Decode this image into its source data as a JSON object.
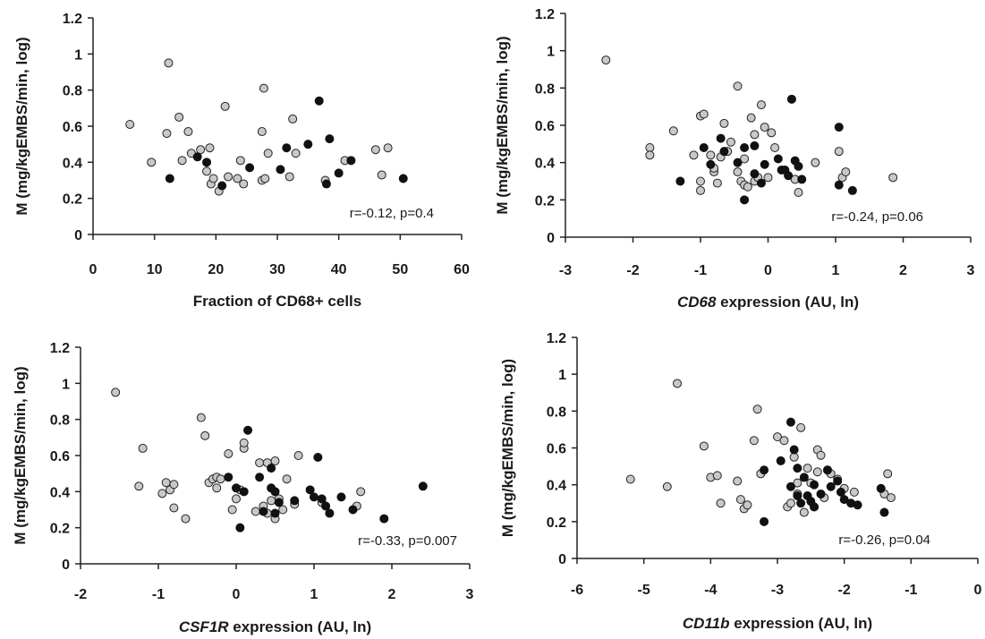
{
  "colors": {
    "open_points": "#c8c8c8",
    "filled_points": "#111111",
    "axis": "#222222"
  },
  "chart_data": [
    {
      "type": "scatter",
      "xlabel": "Fraction of CD68+ cells",
      "xlabel_italic": "",
      "xlabel_rest": "",
      "ylabel": "M (mg/kgEMBS/min, log)",
      "xlim": [
        0,
        60
      ],
      "ylim": [
        0,
        1.2
      ],
      "xticks": [
        "0",
        "10",
        "20",
        "30",
        "40",
        "50",
        "60"
      ],
      "yticks": [
        "0",
        "0.2",
        "0.4",
        "0.6",
        "0.8",
        "1",
        "1.2"
      ],
      "annotation": "r=-0.12, p=0.4",
      "series": [
        {
          "style": "open",
          "points": [
            [
              6,
              0.61
            ],
            [
              9.5,
              0.4
            ],
            [
              12,
              0.56
            ],
            [
              12.3,
              0.95
            ],
            [
              14,
              0.65
            ],
            [
              14.5,
              0.41
            ],
            [
              15.5,
              0.57
            ],
            [
              16,
              0.45
            ],
            [
              17.5,
              0.47
            ],
            [
              18.5,
              0.35
            ],
            [
              19,
              0.48
            ],
            [
              19.2,
              0.28
            ],
            [
              19.6,
              0.31
            ],
            [
              20.5,
              0.24
            ],
            [
              21.5,
              0.71
            ],
            [
              22,
              0.32
            ],
            [
              23.5,
              0.31
            ],
            [
              24,
              0.41
            ],
            [
              24.5,
              0.28
            ],
            [
              27.5,
              0.57
            ],
            [
              27.5,
              0.3
            ],
            [
              27.8,
              0.81
            ],
            [
              28,
              0.31
            ],
            [
              28.5,
              0.45
            ],
            [
              32,
              0.32
            ],
            [
              32.5,
              0.64
            ],
            [
              33,
              0.45
            ],
            [
              37.8,
              0.3
            ],
            [
              41,
              0.41
            ],
            [
              46,
              0.47
            ],
            [
              47,
              0.33
            ],
            [
              48,
              0.48
            ]
          ]
        },
        {
          "style": "filled",
          "points": [
            [
              12.5,
              0.31
            ],
            [
              17,
              0.43
            ],
            [
              18.5,
              0.4
            ],
            [
              21,
              0.27
            ],
            [
              25.5,
              0.37
            ],
            [
              30.5,
              0.36
            ],
            [
              31.5,
              0.48
            ],
            [
              35,
              0.5
            ],
            [
              36.8,
              0.74
            ],
            [
              38,
              0.28
            ],
            [
              38.5,
              0.53
            ],
            [
              40,
              0.34
            ],
            [
              42,
              0.41
            ],
            [
              50.5,
              0.31
            ]
          ]
        }
      ]
    },
    {
      "type": "scatter",
      "xlabel": "",
      "xlabel_italic": "CD68",
      "xlabel_rest": " expression (AU, ln)",
      "ylabel": "M (mg/kgEMBS/min, log)",
      "xlim": [
        -3,
        3
      ],
      "ylim": [
        0,
        1.2
      ],
      "xticks": [
        "-3",
        "-2",
        "-1",
        "0",
        "1",
        "2",
        "3"
      ],
      "yticks": [
        "0",
        "0.2",
        "0.4",
        "0.6",
        "0.8",
        "1",
        "1.2"
      ],
      "annotation": "r=-0.24, p=0.06",
      "series": [
        {
          "style": "open",
          "points": [
            [
              -2.4,
              0.95
            ],
            [
              -1.75,
              0.48
            ],
            [
              -1.75,
              0.44
            ],
            [
              -1.4,
              0.57
            ],
            [
              -1.1,
              0.44
            ],
            [
              -1,
              0.65
            ],
            [
              -1,
              0.3
            ],
            [
              -1,
              0.25
            ],
            [
              -0.95,
              0.66
            ],
            [
              -0.85,
              0.44
            ],
            [
              -0.8,
              0.35
            ],
            [
              -0.8,
              0.37
            ],
            [
              -0.75,
              0.29
            ],
            [
              -0.7,
              0.43
            ],
            [
              -0.65,
              0.61
            ],
            [
              -0.6,
              0.46
            ],
            [
              -0.55,
              0.51
            ],
            [
              -0.45,
              0.35
            ],
            [
              -0.45,
              0.81
            ],
            [
              -0.4,
              0.3
            ],
            [
              -0.35,
              0.28
            ],
            [
              -0.35,
              0.42
            ],
            [
              -0.3,
              0.27
            ],
            [
              -0.25,
              0.64
            ],
            [
              -0.2,
              0.3
            ],
            [
              -0.2,
              0.55
            ],
            [
              -0.15,
              0.32
            ],
            [
              -0.1,
              0.71
            ],
            [
              -0.05,
              0.59
            ],
            [
              0,
              0.32
            ],
            [
              0.05,
              0.56
            ],
            [
              0.1,
              0.48
            ],
            [
              0.4,
              0.31
            ],
            [
              0.45,
              0.24
            ],
            [
              0.7,
              0.4
            ],
            [
              1.05,
              0.46
            ],
            [
              1.1,
              0.32
            ],
            [
              1.15,
              0.35
            ],
            [
              1.85,
              0.32
            ]
          ]
        },
        {
          "style": "filled",
          "points": [
            [
              -1.3,
              0.3
            ],
            [
              -0.95,
              0.48
            ],
            [
              -0.85,
              0.39
            ],
            [
              -0.7,
              0.53
            ],
            [
              -0.65,
              0.46
            ],
            [
              -0.45,
              0.4
            ],
            [
              -0.35,
              0.2
            ],
            [
              -0.35,
              0.48
            ],
            [
              -0.2,
              0.49
            ],
            [
              -0.2,
              0.34
            ],
            [
              -0.1,
              0.29
            ],
            [
              -0.05,
              0.39
            ],
            [
              0.15,
              0.42
            ],
            [
              0.2,
              0.36
            ],
            [
              0.25,
              0.36
            ],
            [
              0.3,
              0.33
            ],
            [
              0.35,
              0.74
            ],
            [
              0.4,
              0.41
            ],
            [
              0.45,
              0.38
            ],
            [
              0.5,
              0.31
            ],
            [
              1.05,
              0.59
            ],
            [
              1.05,
              0.28
            ],
            [
              1.25,
              0.25
            ]
          ]
        }
      ]
    },
    {
      "type": "scatter",
      "xlabel": "",
      "xlabel_italic": "CSF1R",
      "xlabel_rest": " expression (AU, ln)",
      "ylabel": "M (mg/kgEMBS/min, log)",
      "xlim": [
        -2,
        3
      ],
      "ylim": [
        0,
        1.2
      ],
      "xticks": [
        "-2",
        "-1",
        "0",
        "1",
        "2",
        "3"
      ],
      "yticks": [
        "0",
        "0.2",
        "0.4",
        "0.6",
        "0.8",
        "1",
        "1.2"
      ],
      "annotation": "r=-0.33, p=0.007",
      "series": [
        {
          "style": "open",
          "points": [
            [
              -1.55,
              0.95
            ],
            [
              -1.25,
              0.43
            ],
            [
              -1.2,
              0.64
            ],
            [
              -0.95,
              0.39
            ],
            [
              -0.9,
              0.45
            ],
            [
              -0.85,
              0.41
            ],
            [
              -0.8,
              0.44
            ],
            [
              -0.8,
              0.31
            ],
            [
              -0.65,
              0.25
            ],
            [
              -0.35,
              0.45
            ],
            [
              -0.3,
              0.47
            ],
            [
              -0.25,
              0.42
            ],
            [
              -0.25,
              0.48
            ],
            [
              -0.2,
              0.47
            ],
            [
              -0.1,
              0.61
            ],
            [
              -0.05,
              0.3
            ],
            [
              0,
              0.36
            ],
            [
              0.05,
              0.41
            ],
            [
              0.1,
              0.64
            ],
            [
              0.1,
              0.67
            ],
            [
              0.25,
              0.29
            ],
            [
              0.3,
              0.56
            ],
            [
              0.35,
              0.32
            ],
            [
              0.4,
              0.56
            ],
            [
              0.4,
              0.28
            ],
            [
              0.45,
              0.35
            ],
            [
              0.5,
              0.57
            ],
            [
              0.5,
              0.25
            ],
            [
              0.55,
              0.36
            ],
            [
              0.6,
              0.3
            ],
            [
              0.65,
              0.47
            ],
            [
              0.75,
              0.33
            ],
            [
              0.8,
              0.6
            ],
            [
              1.1,
              0.34
            ],
            [
              1.55,
              0.32
            ],
            [
              1.6,
              0.4
            ],
            [
              -0.45,
              0.81
            ],
            [
              -0.4,
              0.71
            ]
          ]
        },
        {
          "style": "filled",
          "points": [
            [
              -0.1,
              0.48
            ],
            [
              0,
              0.42
            ],
            [
              0.05,
              0.2
            ],
            [
              0.1,
              0.4
            ],
            [
              0.15,
              0.74
            ],
            [
              0.3,
              0.48
            ],
            [
              0.35,
              0.29
            ],
            [
              0.45,
              0.53
            ],
            [
              0.45,
              0.42
            ],
            [
              0.5,
              0.4
            ],
            [
              0.55,
              0.34
            ],
            [
              0.75,
              0.35
            ],
            [
              0.95,
              0.41
            ],
            [
              1,
              0.37
            ],
            [
              1.05,
              0.59
            ],
            [
              1.1,
              0.36
            ],
            [
              1.15,
              0.32
            ],
            [
              1.2,
              0.28
            ],
            [
              1.35,
              0.37
            ],
            [
              1.5,
              0.3
            ],
            [
              1.9,
              0.25
            ],
            [
              2.4,
              0.43
            ],
            [
              0.5,
              0.28
            ]
          ]
        }
      ]
    },
    {
      "type": "scatter",
      "xlabel": "",
      "xlabel_italic": "CD11b",
      "xlabel_rest": " expression (AU, ln)",
      "ylabel": "M (mg/kgEMBS/min, log)",
      "xlim": [
        -6,
        0
      ],
      "ylim": [
        0,
        1.2
      ],
      "xticks": [
        "-6",
        "-5",
        "-4",
        "-3",
        "-2",
        "-1",
        "0"
      ],
      "yticks": [
        "0",
        "0.2",
        "0.4",
        "0.6",
        "0.8",
        "1",
        "1.2"
      ],
      "annotation": "r=-0.26, p=0.04",
      "series": [
        {
          "style": "open",
          "points": [
            [
              -5.2,
              0.43
            ],
            [
              -4.65,
              0.39
            ],
            [
              -4.5,
              0.95
            ],
            [
              -4.1,
              0.61
            ],
            [
              -4,
              0.44
            ],
            [
              -3.9,
              0.45
            ],
            [
              -3.85,
              0.3
            ],
            [
              -3.6,
              0.42
            ],
            [
              -3.5,
              0.27
            ],
            [
              -3.45,
              0.29
            ],
            [
              -3.35,
              0.64
            ],
            [
              -3.3,
              0.81
            ],
            [
              -3.25,
              0.46
            ],
            [
              -3,
              0.66
            ],
            [
              -2.9,
              0.64
            ],
            [
              -2.85,
              0.28
            ],
            [
              -2.8,
              0.3
            ],
            [
              -2.75,
              0.55
            ],
            [
              -2.7,
              0.35
            ],
            [
              -2.7,
              0.41
            ],
            [
              -2.65,
              0.71
            ],
            [
              -2.6,
              0.25
            ],
            [
              -2.55,
              0.49
            ],
            [
              -2.5,
              0.41
            ],
            [
              -2.45,
              0.28
            ],
            [
              -2.4,
              0.47
            ],
            [
              -2.4,
              0.59
            ],
            [
              -2.35,
              0.56
            ],
            [
              -2.3,
              0.33
            ],
            [
              -2.25,
              0.48
            ],
            [
              -2.2,
              0.46
            ],
            [
              -2.1,
              0.43
            ],
            [
              -2,
              0.38
            ],
            [
              -1.85,
              0.36
            ],
            [
              -1.4,
              0.35
            ],
            [
              -1.35,
              0.46
            ],
            [
              -1.3,
              0.33
            ],
            [
              -3.55,
              0.32
            ]
          ]
        },
        {
          "style": "filled",
          "points": [
            [
              -3.2,
              0.48
            ],
            [
              -3.2,
              0.2
            ],
            [
              -2.95,
              0.53
            ],
            [
              -2.8,
              0.74
            ],
            [
              -2.8,
              0.39
            ],
            [
              -2.75,
              0.59
            ],
            [
              -2.7,
              0.49
            ],
            [
              -2.7,
              0.34
            ],
            [
              -2.65,
              0.3
            ],
            [
              -2.6,
              0.44
            ],
            [
              -2.55,
              0.34
            ],
            [
              -2.5,
              0.31
            ],
            [
              -2.45,
              0.4
            ],
            [
              -2.45,
              0.28
            ],
            [
              -2.35,
              0.35
            ],
            [
              -2.25,
              0.48
            ],
            [
              -2.2,
              0.39
            ],
            [
              -2.1,
              0.42
            ],
            [
              -2.05,
              0.36
            ],
            [
              -2,
              0.32
            ],
            [
              -1.9,
              0.3
            ],
            [
              -1.8,
              0.29
            ],
            [
              -1.45,
              0.38
            ],
            [
              -1.4,
              0.25
            ]
          ]
        }
      ]
    }
  ]
}
